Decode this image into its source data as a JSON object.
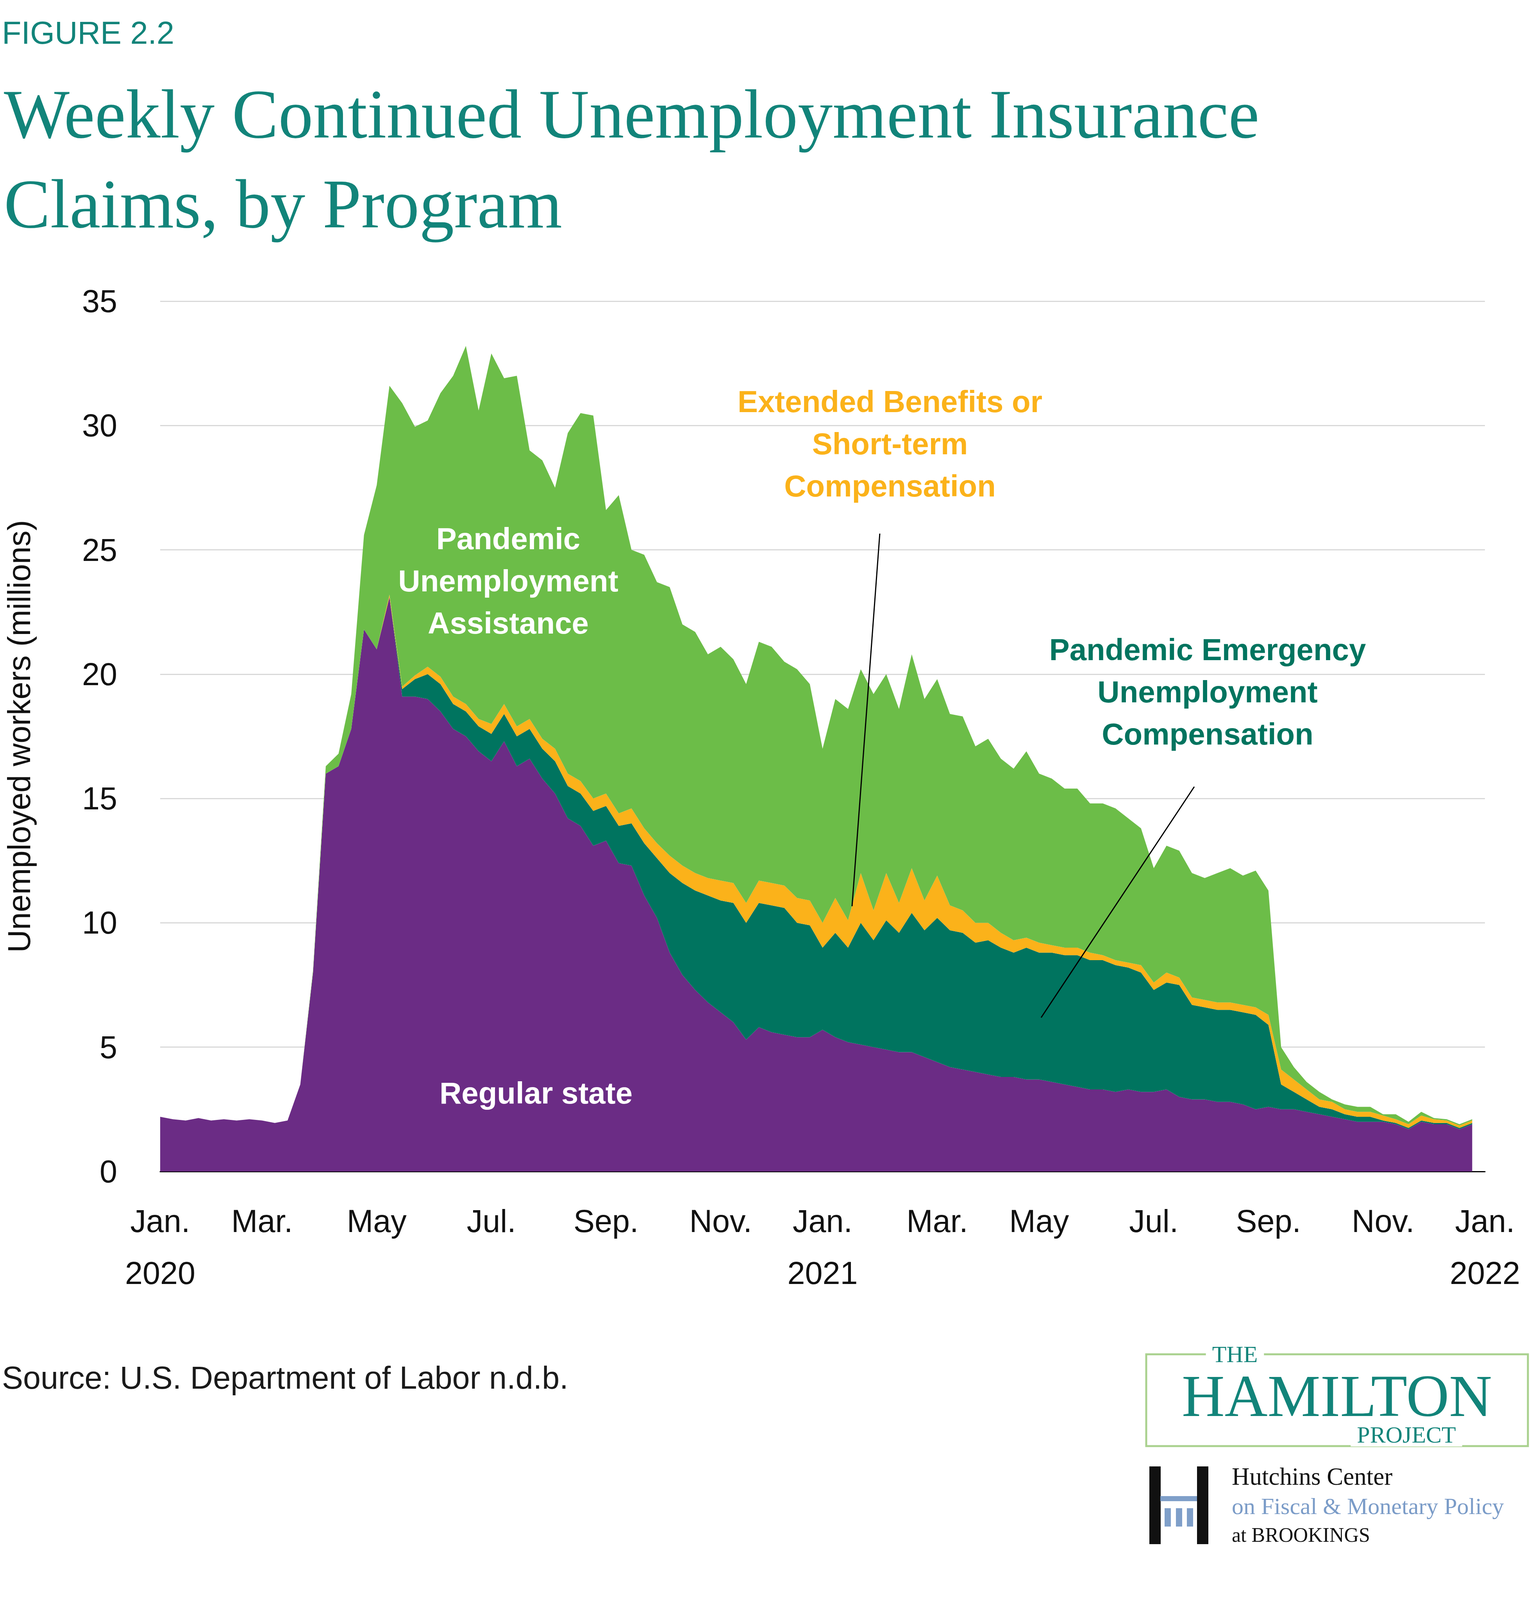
{
  "chart_data": {
    "type": "area",
    "title": "Weekly Continued Unemployment Insurance Claims, by Program",
    "y_label": "Unemployed workers (millions)",
    "annotations": [
      "FIGURE 2.2",
      "Source: U.S. Department of Labor n.d.b.",
      "THE",
      "HAMILTON",
      "PROJECT",
      "Hutchins Center",
      "on Fiscal & Monetary Policy",
      "at BROOKINGS"
    ],
    "categories": [
      "Jan.\n2020",
      null,
      null,
      null,
      null,
      null,
      null,
      null,
      "Mar.",
      null,
      null,
      null,
      null,
      null,
      null,
      null,
      null,
      "May",
      null,
      null,
      null,
      null,
      null,
      null,
      null,
      null,
      "Jul.",
      null,
      null,
      null,
      null,
      null,
      null,
      null,
      null,
      "Sep.",
      null,
      null,
      null,
      null,
      null,
      null,
      null,
      null,
      "Nov.",
      null,
      null,
      null,
      null,
      null,
      null,
      null,
      "Jan.\n2021",
      null,
      null,
      null,
      null,
      null,
      null,
      null,
      null,
      "Mar.",
      null,
      null,
      null,
      null,
      null,
      null,
      null,
      "May",
      null,
      null,
      null,
      null,
      null,
      null,
      null,
      null,
      "Jul.",
      null,
      null,
      null,
      null,
      null,
      null,
      null,
      null,
      "Sep.",
      null,
      null,
      null,
      null,
      null,
      null,
      null,
      null,
      "Nov.",
      null,
      null,
      null,
      null,
      null,
      null,
      null,
      "Jan.\n2022"
    ],
    "series": [
      {
        "name": "Regular state",
        "color": "#6b2c85",
        "values": [
          2.2,
          2.1,
          2.05,
          2.15,
          2.05,
          2.1,
          2.05,
          2.1,
          2.05,
          1.95,
          2.05,
          3.5,
          8,
          16,
          16.3,
          17.8,
          21.8,
          21,
          23.1,
          19.1,
          19.1,
          19,
          18.5,
          17.8,
          17.5,
          16.9,
          16.5,
          17.3,
          16.3,
          16.6,
          15.8,
          15.2,
          14.2,
          13.9,
          13.1,
          13.3,
          12.4,
          12.3,
          11.1,
          10.2,
          8.8,
          7.9,
          7.3,
          6.8,
          6.4,
          6,
          5.3,
          5.8,
          5.6,
          5.5,
          5.4,
          5.4,
          5.7,
          5.4,
          5.2,
          5.1,
          5,
          4.9,
          4.8,
          4.8,
          4.6,
          4.4,
          4.2,
          4.1,
          4,
          3.9,
          3.8,
          3.8,
          3.7,
          3.7,
          3.6,
          3.5,
          3.4,
          3.3,
          3.3,
          3.2,
          3.3,
          3.2,
          3.2,
          3.3,
          3,
          2.9,
          2.9,
          2.8,
          2.8,
          2.7,
          2.5,
          2.6,
          2.5,
          2.5,
          2.4,
          2.3,
          2.2,
          2.1,
          2,
          2,
          2,
          1.9,
          1.7,
          2,
          1.9,
          1.9,
          1.7,
          1.9,
          null
        ]
      },
      {
        "name": "Pandemic Emergency Unemployment Compensation",
        "color": "#00745f",
        "values": [
          0,
          0,
          0,
          0,
          0,
          0,
          0,
          0,
          0,
          0,
          0,
          0,
          0,
          0,
          0,
          0,
          0,
          0,
          0,
          0.3,
          0.7,
          1,
          1.1,
          1,
          1,
          1,
          1.1,
          1.1,
          1.2,
          1.2,
          1.2,
          1.3,
          1.3,
          1.3,
          1.4,
          1.4,
          1.5,
          1.7,
          2.1,
          2.4,
          3.2,
          3.7,
          4,
          4.3,
          4.5,
          4.8,
          4.7,
          5,
          5.1,
          5.1,
          4.6,
          4.5,
          3.3,
          4.2,
          3.8,
          4.9,
          4.3,
          5.2,
          4.8,
          5.6,
          5.1,
          5.8,
          5.5,
          5.5,
          5.2,
          5.4,
          5.2,
          5,
          5.3,
          5.1,
          5.2,
          5.2,
          5.3,
          5.2,
          5.2,
          5.1,
          4.9,
          4.8,
          4.1,
          4.3,
          4.5,
          3.8,
          3.7,
          3.7,
          3.7,
          3.7,
          3.8,
          3.3,
          1,
          0.7,
          0.5,
          0.3,
          0.3,
          0.2,
          0.2,
          0.2,
          0.05,
          0.05,
          0.05,
          0.05,
          0.05,
          0.05,
          0.05,
          0.05,
          null
        ]
      },
      {
        "name": "Extended Benefits or Short-term Compensation",
        "color": "#fbb21a",
        "values": [
          0,
          0,
          0,
          0,
          0,
          0,
          0,
          0,
          0,
          0,
          0,
          0,
          0,
          0,
          0,
          0,
          0,
          0,
          0.1,
          0.1,
          0.15,
          0.3,
          0.3,
          0.3,
          0.3,
          0.3,
          0.4,
          0.4,
          0.4,
          0.4,
          0.4,
          0.5,
          0.5,
          0.5,
          0.5,
          0.5,
          0.5,
          0.6,
          0.6,
          0.6,
          0.7,
          0.7,
          0.7,
          0.7,
          0.8,
          0.8,
          0.8,
          0.9,
          0.9,
          0.9,
          1,
          1,
          1,
          1.4,
          1.1,
          2,
          1.2,
          1.9,
          1.2,
          1.8,
          1.2,
          1.7,
          1,
          0.9,
          0.8,
          0.7,
          0.6,
          0.5,
          0.4,
          0.4,
          0.3,
          0.3,
          0.3,
          0.3,
          0.2,
          0.2,
          0.2,
          0.3,
          0.3,
          0.4,
          0.3,
          0.3,
          0.3,
          0.3,
          0.3,
          0.3,
          0.3,
          0.4,
          0.6,
          0.5,
          0.4,
          0.3,
          0.3,
          0.2,
          0.2,
          0.2,
          0.2,
          0.15,
          0.15,
          0.2,
          0.15,
          0.1,
          0.1,
          0.1,
          null
        ]
      },
      {
        "name": "Pandemic Unemployment Assistance",
        "color": "#6cbd48",
        "values": [
          0,
          0,
          0,
          0,
          0,
          0,
          0,
          0,
          0,
          0,
          0,
          0,
          0.1,
          0.3,
          0.5,
          1.4,
          3.8,
          6.6,
          8.4,
          11.4,
          10,
          9.9,
          11.4,
          12.9,
          14.4,
          12.4,
          14.9,
          13.1,
          14.1,
          10.8,
          11.2,
          10.5,
          13.7,
          14.8,
          15.4,
          11.4,
          12.8,
          10.4,
          11,
          10.5,
          10.8,
          9.7,
          9.7,
          9,
          9.4,
          9,
          8.8,
          9.6,
          9.5,
          9,
          9.2,
          8.7,
          7,
          8,
          8.5,
          8.2,
          8.7,
          8,
          7.8,
          8.6,
          8.1,
          7.9,
          7.7,
          7.8,
          7.1,
          7.4,
          7,
          6.9,
          7.5,
          6.8,
          6.7,
          6.4,
          6.4,
          6,
          6.1,
          6.1,
          5.8,
          5.5,
          4.6,
          5.1,
          5.1,
          5,
          4.9,
          5.2,
          5.4,
          5.2,
          5.5,
          5,
          0.9,
          0.5,
          0.3,
          0.3,
          0.1,
          0.2,
          0.2,
          0.2,
          0.05,
          0.2,
          0.1,
          0.15,
          0.05,
          0.05,
          0.05,
          0.05,
          null
        ]
      }
    ],
    "ylim": [
      0,
      35
    ],
    "yticks": [
      0,
      5,
      10,
      15,
      20,
      25,
      30,
      35
    ],
    "grid": true,
    "stacked": true
  }
}
